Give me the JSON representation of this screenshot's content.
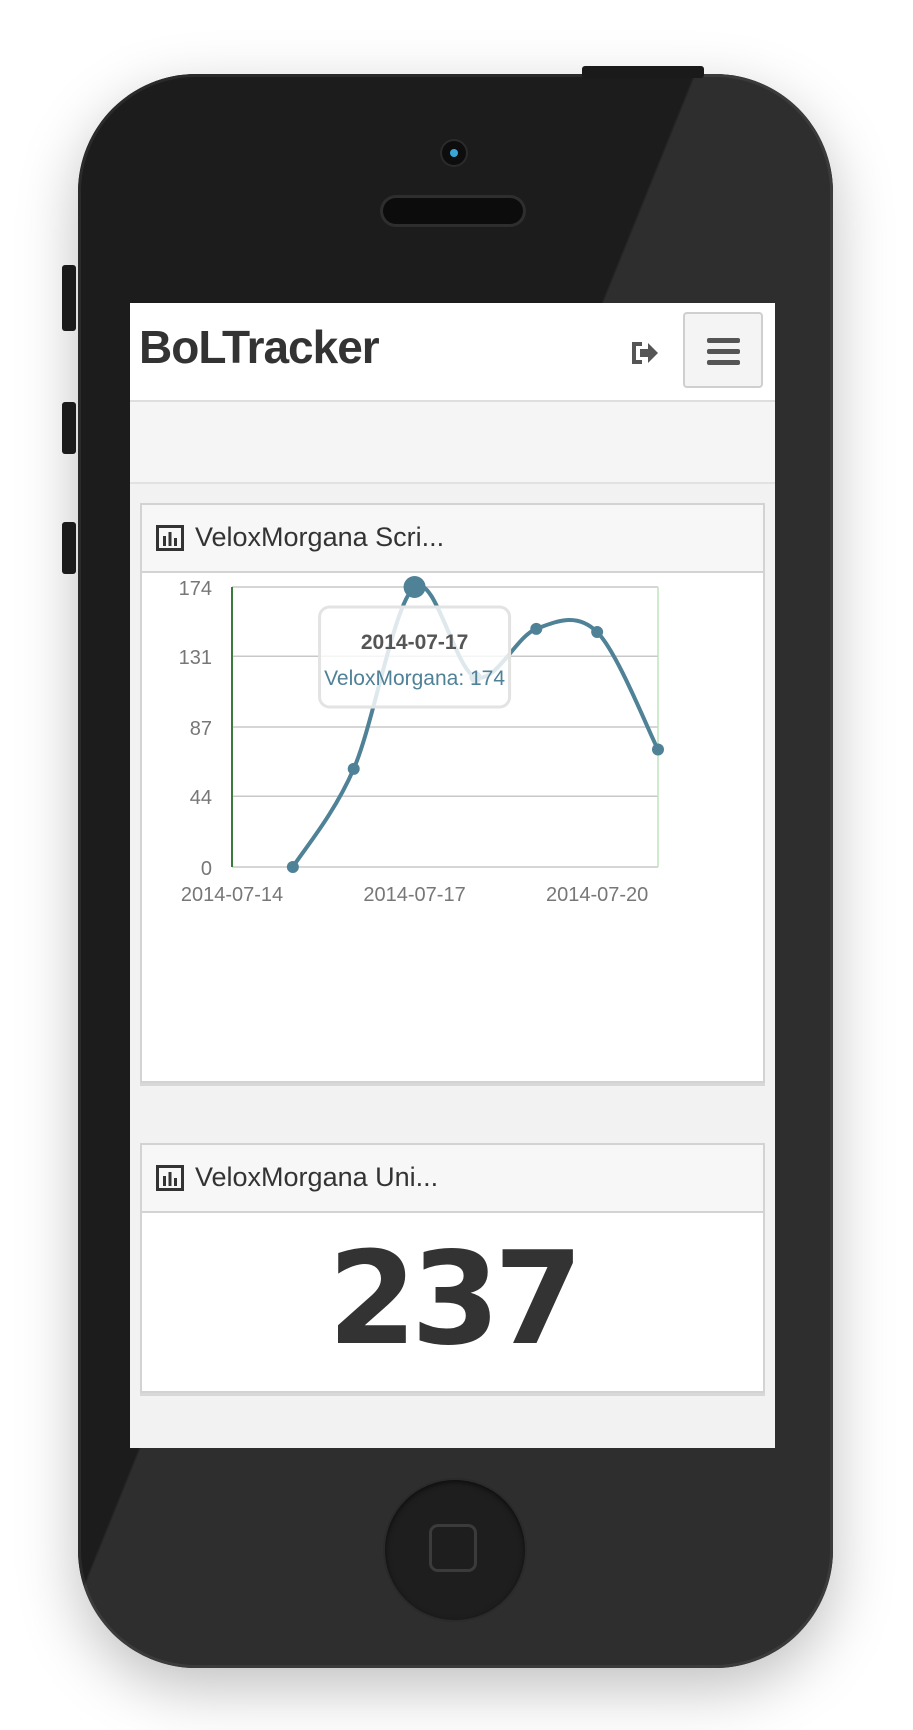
{
  "app": {
    "brand": "BoLTracker"
  },
  "navbar": {
    "logout_icon": "sign-out-icon",
    "menu_icon": "hamburger-menu-icon"
  },
  "panels": [
    {
      "title": "VeloxMorgana Scri...",
      "icon": "bar-chart-icon",
      "tooltip": {
        "date": "2014-07-17",
        "text": "VeloxMorgana: 174"
      }
    },
    {
      "title": "VeloxMorgana Uni...",
      "icon": "bar-chart-icon",
      "value": "237"
    }
  ],
  "colors": {
    "series": "#4f8197",
    "axis": "#3a7d3a",
    "grid": "#c8c8c8"
  },
  "chart_data": {
    "type": "line",
    "x": [
      "2014-07-15",
      "2014-07-16",
      "2014-07-17",
      "2014-07-18",
      "2014-07-19",
      "2014-07-20",
      "2014-07-21"
    ],
    "series": [
      {
        "name": "VeloxMorgana",
        "values": [
          0,
          61,
          174,
          118,
          148,
          146,
          73
        ]
      }
    ],
    "y_ticks": [
      "0",
      "44",
      "87",
      "131",
      "174"
    ],
    "x_ticks": [
      "2014-07-14",
      "2014-07-17",
      "2014-07-20"
    ],
    "xlim": [
      "2014-07-14",
      "2014-07-21"
    ],
    "ylim": [
      0,
      174
    ],
    "grid": true,
    "highlighted_point": "2014-07-17"
  }
}
